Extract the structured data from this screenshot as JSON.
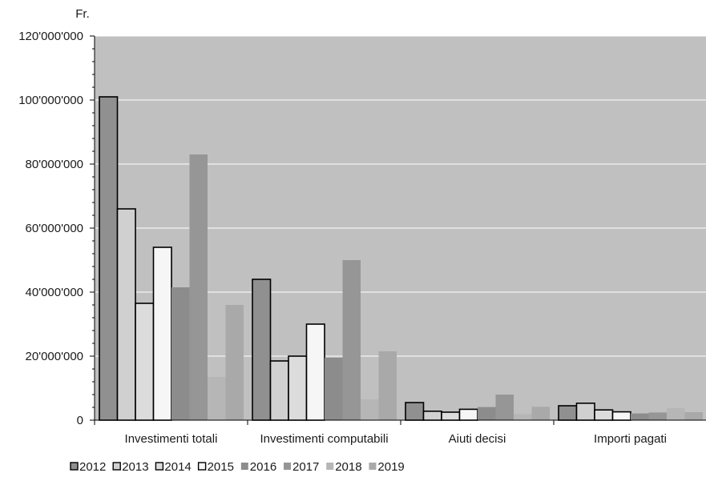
{
  "chart_data": {
    "type": "bar",
    "unit_label": "Fr.",
    "categories": [
      "Investimenti totali",
      "Investimenti computabili",
      "Aiuti decisi",
      "Importi pagati"
    ],
    "ylim": [
      0,
      120000000
    ],
    "yticks": [
      0,
      20000000,
      40000000,
      60000000,
      80000000,
      100000000,
      120000000
    ],
    "ytick_labels": [
      "0",
      "20'000'000",
      "40'000'000",
      "60'000'000",
      "80'000'000",
      "100'000'000",
      "120'000'000"
    ],
    "grid": true,
    "legend_position": "bottom",
    "plot_background": "#c0c0c0",
    "series": [
      {
        "name": "2012",
        "color": "#909090",
        "values": [
          101000000,
          44000000,
          5500000,
          4500000
        ]
      },
      {
        "name": "2013",
        "color": "#d0d0d0",
        "values": [
          66000000,
          18500000,
          2800000,
          5300000
        ]
      },
      {
        "name": "2014",
        "color": "#dcdcdc",
        "values": [
          36500000,
          20000000,
          2500000,
          3200000
        ]
      },
      {
        "name": "2015",
        "color": "#f6f6f6",
        "values": [
          54000000,
          30000000,
          3400000,
          2600000
        ]
      },
      {
        "name": "2016",
        "color": "#8c8c8c",
        "values": [
          41500000,
          19500000,
          4100000,
          2100000
        ]
      },
      {
        "name": "2017",
        "color": "#969696",
        "values": [
          83000000,
          50000000,
          8000000,
          2400000
        ]
      },
      {
        "name": "2018",
        "color": "#b6b6b6",
        "values": [
          13500000,
          6500000,
          1900000,
          3800000
        ]
      },
      {
        "name": "2019",
        "color": "#a9a9a9",
        "values": [
          36000000,
          21500000,
          4200000,
          2500000
        ]
      }
    ]
  }
}
